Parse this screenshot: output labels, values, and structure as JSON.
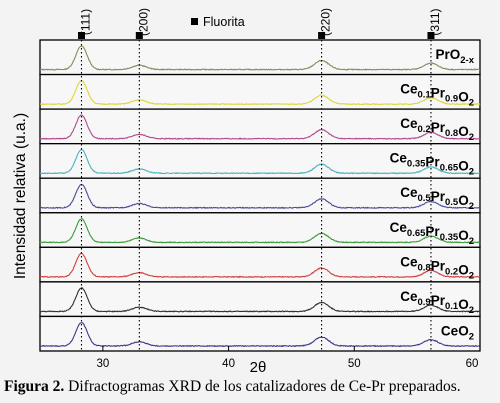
{
  "chart_data": {
    "type": "line",
    "ylabel": "Intensidad relativa (u.a.)",
    "xlabel": "2θ",
    "xlim": [
      25,
      60
    ],
    "x_ticks": [
      30,
      40,
      50,
      60
    ],
    "legend": {
      "marker": "■",
      "label": "Fluorita"
    },
    "reflections": [
      {
        "label": "(111)",
        "x": 28.3
      },
      {
        "label": "(200)",
        "x": 32.9
      },
      {
        "label": "(220)",
        "x": 47.4
      },
      {
        "label": "(311)",
        "x": 56.1
      }
    ],
    "peak_shape": {
      "positions": [
        28.3,
        32.9,
        47.4,
        56.1
      ],
      "relative_heights": [
        1.0,
        0.18,
        0.38,
        0.27
      ],
      "width": 0.45
    },
    "series": [
      {
        "name": "PrO2-x",
        "label": {
          "base": [
            "Pr",
            "O"
          ],
          "subs": [
            "",
            "2-x"
          ]
        },
        "color": "#8a8a60"
      },
      {
        "name": "Ce0.1Pr0.9O2",
        "label": {
          "base": [
            "Ce",
            "Pr",
            "O"
          ],
          "subs": [
            "0.1",
            "0.9",
            "2"
          ]
        },
        "color": "#e0d63c"
      },
      {
        "name": "Ce0.2Pr0.8O2",
        "label": {
          "base": [
            "Ce",
            "Pr",
            "O"
          ],
          "subs": [
            "0.2",
            "0.8",
            "2"
          ]
        },
        "color": "#b04a8e"
      },
      {
        "name": "Ce0.35Pr0.65O2",
        "label": {
          "base": [
            "Ce",
            "Pr",
            "O"
          ],
          "subs": [
            "0.35",
            "0.65",
            "2"
          ]
        },
        "color": "#4bb3bd"
      },
      {
        "name": "Ce0.5Pr0.5O2",
        "label": {
          "base": [
            "Ce",
            "Pr",
            "O"
          ],
          "subs": [
            "0.5",
            "0.5",
            "2"
          ]
        },
        "color": "#4a4a9a"
      },
      {
        "name": "Ce0.65Pr0.35O2",
        "label": {
          "base": [
            "Ce",
            "Pr",
            "O"
          ],
          "subs": [
            "0.65",
            "0.35",
            "2"
          ]
        },
        "color": "#3a9a3a"
      },
      {
        "name": "Ce0.8Pr0.2O2",
        "label": {
          "base": [
            "Ce",
            "Pr",
            "O"
          ],
          "subs": [
            "0.8",
            "0.2",
            "2"
          ]
        },
        "color": "#d24040"
      },
      {
        "name": "Ce0.9Pr0.1O2",
        "label": {
          "base": [
            "Ce",
            "Pr",
            "O"
          ],
          "subs": [
            "0.9",
            "0.1",
            "2"
          ]
        },
        "color": "#303030"
      },
      {
        "name": "CeO2",
        "label": {
          "base": [
            "Ce",
            "O"
          ],
          "subs": [
            "",
            "2"
          ]
        },
        "color": "#3a3a8a"
      }
    ]
  },
  "caption": {
    "label": "Figura 2.",
    "text": " Difractogramas XRD de los catalizadores de Ce-Pr preparados."
  }
}
